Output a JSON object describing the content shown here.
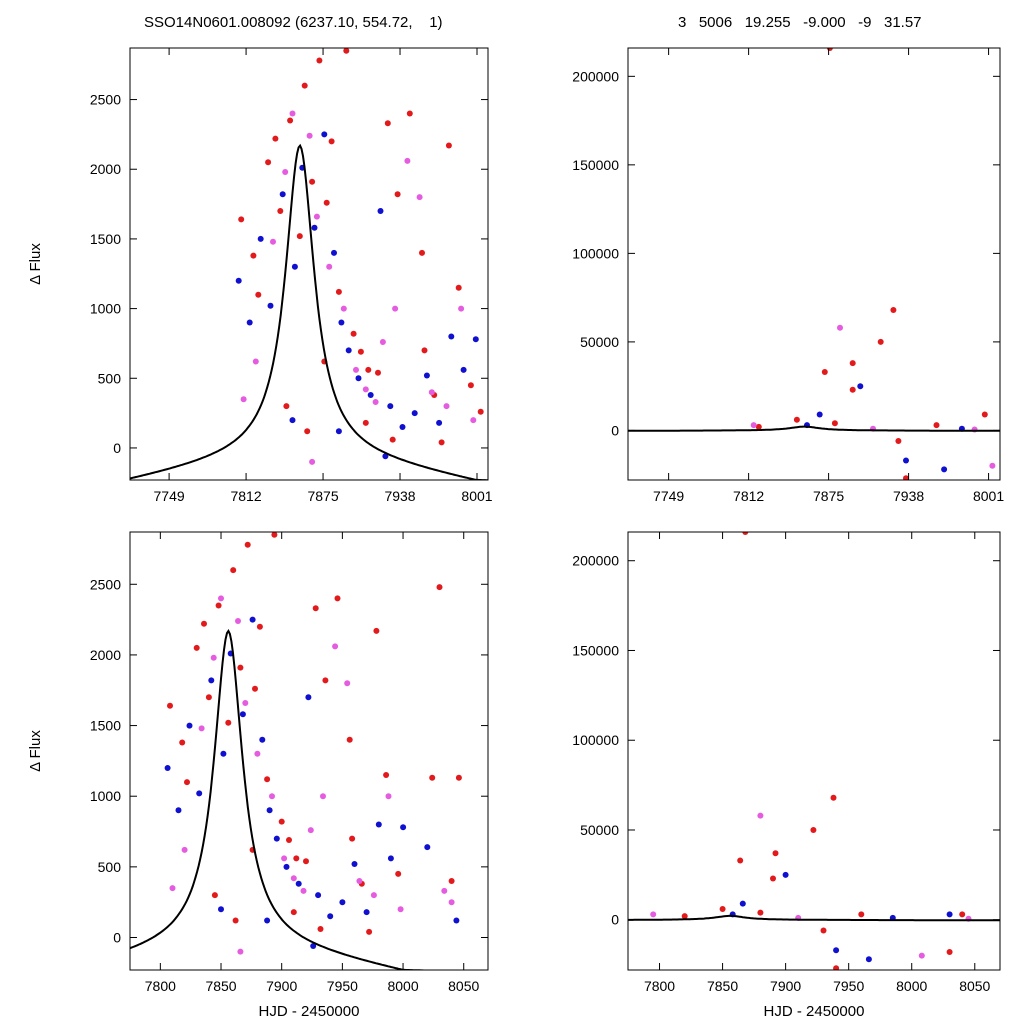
{
  "header": {
    "left": "SSO14N0601.008092 (6237.10, 554.72,    1)",
    "right": "3   5006   19.255   -9.000   -9   31.57"
  },
  "colors": {
    "red": "#e31a1c",
    "blue": "#1010d0",
    "magenta": "#e55ce0",
    "curve": "#000000"
  },
  "chart_data": [
    {
      "type": "scatter",
      "panel": "top-left",
      "xlabel": "",
      "ylabel": "Δ Flux",
      "xlim": [
        7717,
        8010
      ],
      "ylim": [
        -230,
        2870
      ],
      "xticks": [
        7749,
        7812,
        7875,
        7938,
        8001
      ],
      "yticks": [
        0,
        500,
        1000,
        1500,
        2000,
        2500
      ],
      "series": [
        {
          "color": "red",
          "points": [
            [
              7808,
              1640
            ],
            [
              7818,
              1380
            ],
            [
              7822,
              1100
            ],
            [
              7830,
              2050
            ],
            [
              7836,
              2220
            ],
            [
              7840,
              1700
            ],
            [
              7848,
              2350
            ],
            [
              7856,
              1520
            ],
            [
              7860,
              2600
            ],
            [
              7866,
              1910
            ],
            [
              7872,
              2780
            ],
            [
              7878,
              1760
            ],
            [
              7882,
              2200
            ],
            [
              7888,
              1120
            ],
            [
              7894,
              2850
            ],
            [
              7900,
              820
            ],
            [
              7906,
              690
            ],
            [
              7912,
              560
            ],
            [
              7920,
              540
            ],
            [
              7928,
              2330
            ],
            [
              7936,
              1820
            ],
            [
              7946,
              2400
            ],
            [
              7956,
              1400
            ],
            [
              7966,
              380
            ],
            [
              7978,
              2170
            ],
            [
              7986,
              1150
            ],
            [
              7996,
              450
            ],
            [
              8004,
              260
            ],
            [
              7845,
              300
            ],
            [
              7862,
              120
            ],
            [
              7876,
              620
            ],
            [
              7910,
              180
            ],
            [
              7932,
              60
            ],
            [
              7958,
              700
            ],
            [
              7972,
              40
            ]
          ]
        },
        {
          "color": "blue",
          "points": [
            [
              7806,
              1200
            ],
            [
              7815,
              900
            ],
            [
              7824,
              1500
            ],
            [
              7832,
              1020
            ],
            [
              7842,
              1820
            ],
            [
              7852,
              1300
            ],
            [
              7858,
              2010
            ],
            [
              7868,
              1580
            ],
            [
              7876,
              2250
            ],
            [
              7884,
              1400
            ],
            [
              7890,
              900
            ],
            [
              7896,
              700
            ],
            [
              7904,
              500
            ],
            [
              7914,
              380
            ],
            [
              7922,
              1700
            ],
            [
              7930,
              300
            ],
            [
              7940,
              150
            ],
            [
              7950,
              250
            ],
            [
              7960,
              520
            ],
            [
              7970,
              180
            ],
            [
              7980,
              800
            ],
            [
              7990,
              560
            ],
            [
              8000,
              780
            ],
            [
              7850,
              200
            ],
            [
              7888,
              120
            ],
            [
              7926,
              -60
            ]
          ]
        },
        {
          "color": "magenta",
          "points": [
            [
              7810,
              350
            ],
            [
              7820,
              620
            ],
            [
              7834,
              1480
            ],
            [
              7844,
              1980
            ],
            [
              7850,
              2400
            ],
            [
              7864,
              2240
            ],
            [
              7870,
              1660
            ],
            [
              7880,
              1300
            ],
            [
              7892,
              1000
            ],
            [
              7902,
              560
            ],
            [
              7910,
              420
            ],
            [
              7918,
              330
            ],
            [
              7924,
              760
            ],
            [
              7934,
              1000
            ],
            [
              7944,
              2060
            ],
            [
              7954,
              1800
            ],
            [
              7964,
              400
            ],
            [
              7976,
              300
            ],
            [
              7988,
              1000
            ],
            [
              7998,
              200
            ],
            [
              7866,
              -100
            ]
          ]
        }
      ],
      "model_peak": {
        "t0": 7856,
        "amplitude": 2170,
        "width": 18
      }
    },
    {
      "type": "scatter",
      "panel": "top-right",
      "xlabel": "",
      "ylabel": "",
      "xlim": [
        7717,
        8010
      ],
      "ylim": [
        -28000,
        216000
      ],
      "xticks": [
        7749,
        7812,
        7875,
        7938,
        8001
      ],
      "yticks": [
        0,
        50000,
        100000,
        150000,
        200000
      ],
      "series": [
        {
          "color": "red",
          "points": [
            [
              7876,
              216000
            ],
            [
              7926,
              68000
            ],
            [
              7916,
              50000
            ],
            [
              7894,
              38000
            ],
            [
              7872,
              33000
            ],
            [
              7894,
              23000
            ],
            [
              7936,
              -27000
            ],
            [
              7998,
              9000
            ],
            [
              7960,
              3000
            ],
            [
              7850,
              6000
            ],
            [
              7880,
              4000
            ],
            [
              7930,
              -6000
            ],
            [
              7820,
              2000
            ]
          ]
        },
        {
          "color": "blue",
          "points": [
            [
              7868,
              9000
            ],
            [
              7900,
              25000
            ],
            [
              7936,
              -17000
            ],
            [
              7966,
              -22000
            ],
            [
              7858,
              3000
            ],
            [
              7980,
              1000
            ]
          ]
        },
        {
          "color": "magenta",
          "points": [
            [
              7884,
              58000
            ],
            [
              7816,
              3000
            ],
            [
              7910,
              1000
            ],
            [
              8004,
              -20000
            ],
            [
              7990,
              500
            ]
          ]
        }
      ],
      "model_peak": {
        "t0": 7856,
        "amplitude": 2170,
        "width": 18
      }
    },
    {
      "type": "scatter",
      "panel": "bottom-left",
      "xlabel": "HJD - 2450000",
      "ylabel": "Δ Flux",
      "xlim": [
        7775,
        8070
      ],
      "ylim": [
        -230,
        2870
      ],
      "xticks": [
        7800,
        7850,
        7900,
        7950,
        8000,
        8050
      ],
      "yticks": [
        0,
        500,
        1000,
        1500,
        2000,
        2500
      ],
      "series": [
        {
          "color": "red",
          "points": [
            [
              7808,
              1640
            ],
            [
              7818,
              1380
            ],
            [
              7822,
              1100
            ],
            [
              7830,
              2050
            ],
            [
              7836,
              2220
            ],
            [
              7840,
              1700
            ],
            [
              7848,
              2350
            ],
            [
              7856,
              1520
            ],
            [
              7860,
              2600
            ],
            [
              7866,
              1910
            ],
            [
              7872,
              2780
            ],
            [
              7878,
              1760
            ],
            [
              7882,
              2200
            ],
            [
              7888,
              1120
            ],
            [
              7894,
              2850
            ],
            [
              7900,
              820
            ],
            [
              7906,
              690
            ],
            [
              7912,
              560
            ],
            [
              7920,
              540
            ],
            [
              7928,
              2330
            ],
            [
              7936,
              1820
            ],
            [
              7946,
              2400
            ],
            [
              7956,
              1400
            ],
            [
              7966,
              380
            ],
            [
              7978,
              2170
            ],
            [
              7986,
              1150
            ],
            [
              7996,
              450
            ],
            [
              8030,
              2480
            ],
            [
              8046,
              1130
            ],
            [
              8024,
              1130
            ],
            [
              8040,
              400
            ],
            [
              7845,
              300
            ],
            [
              7862,
              120
            ],
            [
              7876,
              620
            ],
            [
              7910,
              180
            ],
            [
              7932,
              60
            ],
            [
              7958,
              700
            ],
            [
              7972,
              40
            ]
          ]
        },
        {
          "color": "blue",
          "points": [
            [
              7806,
              1200
            ],
            [
              7815,
              900
            ],
            [
              7824,
              1500
            ],
            [
              7832,
              1020
            ],
            [
              7842,
              1820
            ],
            [
              7852,
              1300
            ],
            [
              7858,
              2010
            ],
            [
              7868,
              1580
            ],
            [
              7876,
              2250
            ],
            [
              7884,
              1400
            ],
            [
              7890,
              900
            ],
            [
              7896,
              700
            ],
            [
              7904,
              500
            ],
            [
              7914,
              380
            ],
            [
              7922,
              1700
            ],
            [
              7930,
              300
            ],
            [
              7940,
              150
            ],
            [
              7950,
              250
            ],
            [
              7960,
              520
            ],
            [
              7970,
              180
            ],
            [
              7980,
              800
            ],
            [
              7990,
              560
            ],
            [
              8000,
              780
            ],
            [
              8020,
              640
            ],
            [
              8044,
              120
            ],
            [
              7850,
              200
            ],
            [
              7888,
              120
            ],
            [
              7926,
              -60
            ]
          ]
        },
        {
          "color": "magenta",
          "points": [
            [
              7810,
              350
            ],
            [
              7820,
              620
            ],
            [
              7834,
              1480
            ],
            [
              7844,
              1980
            ],
            [
              7850,
              2400
            ],
            [
              7864,
              2240
            ],
            [
              7870,
              1660
            ],
            [
              7880,
              1300
            ],
            [
              7892,
              1000
            ],
            [
              7902,
              560
            ],
            [
              7910,
              420
            ],
            [
              7918,
              330
            ],
            [
              7924,
              760
            ],
            [
              7934,
              1000
            ],
            [
              7944,
              2060
            ],
            [
              7954,
              1800
            ],
            [
              7964,
              400
            ],
            [
              7976,
              300
            ],
            [
              7988,
              1000
            ],
            [
              7998,
              200
            ],
            [
              8034,
              330
            ],
            [
              8040,
              250
            ],
            [
              7866,
              -100
            ]
          ]
        }
      ],
      "model_peak": {
        "t0": 7856,
        "amplitude": 2170,
        "width": 18
      }
    },
    {
      "type": "scatter",
      "panel": "bottom-right",
      "xlabel": "HJD - 2450000",
      "ylabel": "",
      "xlim": [
        7775,
        8070
      ],
      "ylim": [
        -28000,
        216000
      ],
      "xticks": [
        7800,
        7850,
        7900,
        7950,
        8000,
        8050
      ],
      "yticks": [
        0,
        50000,
        100000,
        150000,
        200000
      ],
      "series": [
        {
          "color": "red",
          "points": [
            [
              7868,
              216000
            ],
            [
              7938,
              68000
            ],
            [
              7922,
              50000
            ],
            [
              7892,
              37000
            ],
            [
              7864,
              33000
            ],
            [
              7890,
              23000
            ],
            [
              7940,
              -27000
            ],
            [
              8040,
              3000
            ],
            [
              7960,
              3000
            ],
            [
              7850,
              6000
            ],
            [
              7880,
              4000
            ],
            [
              7930,
              -6000
            ],
            [
              8030,
              -18000
            ],
            [
              7820,
              2000
            ]
          ]
        },
        {
          "color": "blue",
          "points": [
            [
              7866,
              9000
            ],
            [
              7900,
              25000
            ],
            [
              7940,
              -17000
            ],
            [
              7966,
              -22000
            ],
            [
              7858,
              3000
            ],
            [
              8030,
              3000
            ],
            [
              7985,
              1000
            ]
          ]
        },
        {
          "color": "magenta",
          "points": [
            [
              7880,
              58000
            ],
            [
              7795,
              3000
            ],
            [
              7910,
              1000
            ],
            [
              8008,
              -20000
            ],
            [
              8045,
              500
            ]
          ]
        }
      ],
      "model_peak": {
        "t0": 7856,
        "amplitude": 2170,
        "width": 18
      }
    }
  ]
}
